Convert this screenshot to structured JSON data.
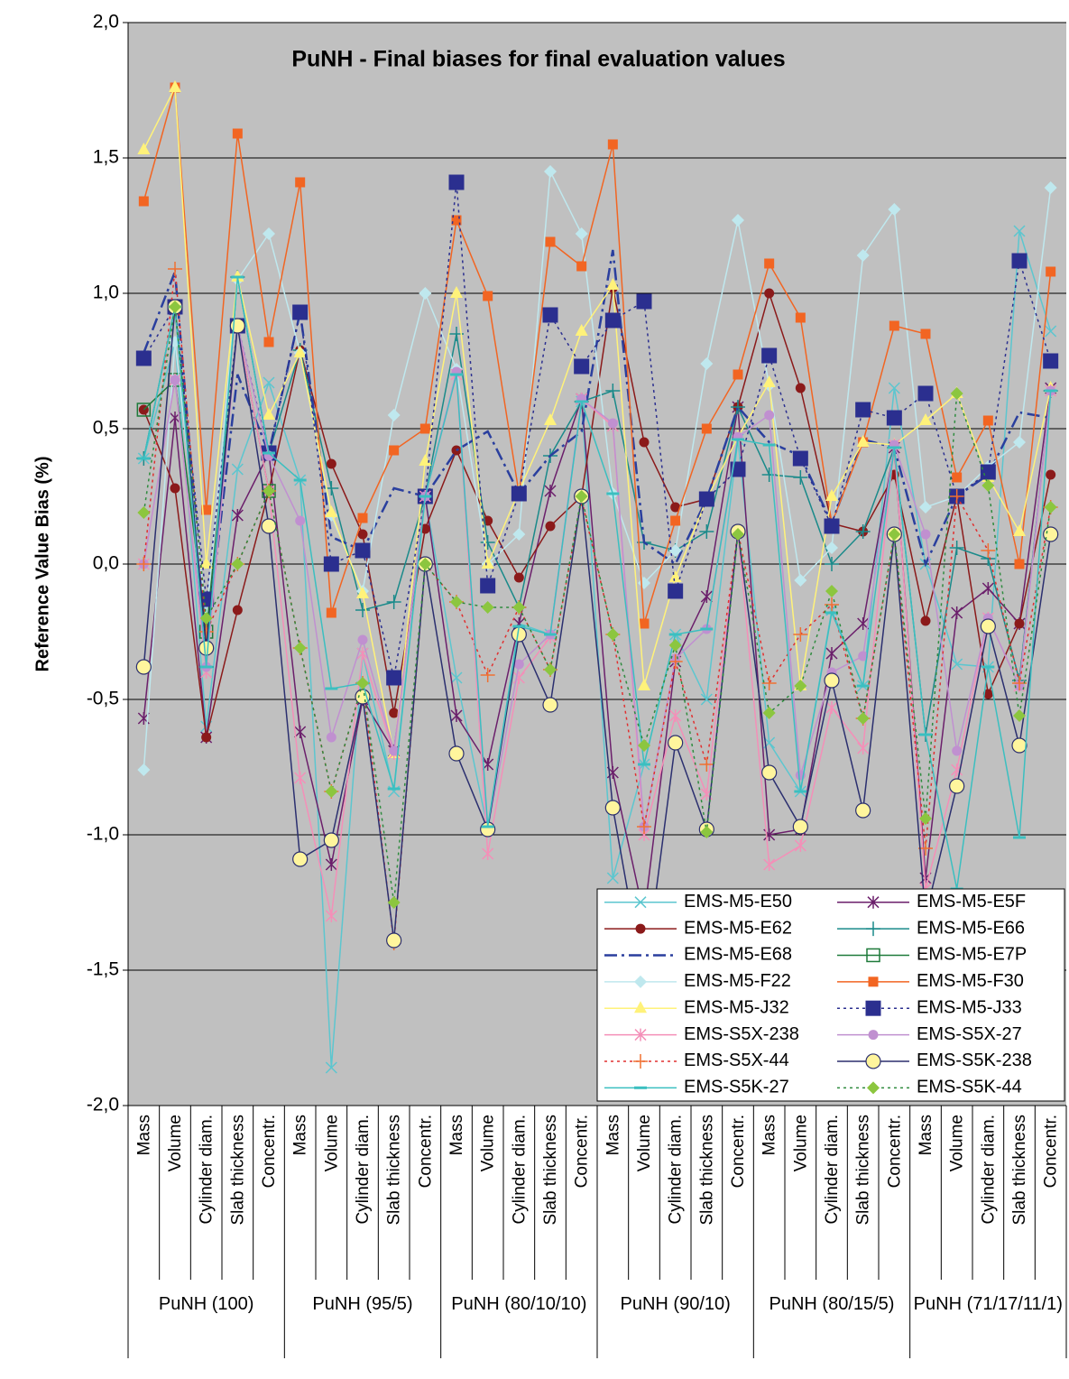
{
  "chart_data": {
    "type": "line",
    "title": "PuNH - Final biases for final evaluation values",
    "y_label": "Reference Value Bias (%)",
    "categories": [
      "Mass",
      "Volume",
      "Cylinder diam.",
      "Slab thickness",
      "Concentr.",
      "Mass",
      "Volume",
      "Cylinder diam.",
      "Slab thickness",
      "Concentr.",
      "Mass",
      "Volume",
      "Cylinder diam.",
      "Slab thickness",
      "Concentr.",
      "Mass",
      "Volume",
      "Cylinder diam.",
      "Slab thickness",
      "Concentr.",
      "Mass",
      "Volume",
      "Cylinder diam.",
      "Slab thickness",
      "Concentr.",
      "Mass",
      "Volume",
      "Cylinder diam.",
      "Slab thickness",
      "Concentr."
    ],
    "groups": [
      "PuNH (100)",
      "PuNH (95/5)",
      "PuNH (80/10/10)",
      "PuNH (90/10)",
      "PuNH (80/15/5)",
      "PuNH (71/17/11/1)"
    ],
    "ylim": [
      -2,
      2
    ],
    "yticks": [
      {
        "value": -2,
        "label": "-2,0"
      },
      {
        "value": -1.5,
        "label": "-1,5"
      },
      {
        "value": -1,
        "label": "-1,0"
      },
      {
        "value": -0.5,
        "label": "-0,5"
      },
      {
        "value": 0,
        "label": "0,0"
      },
      {
        "value": 0.5,
        "label": "0,5"
      },
      {
        "value": 1,
        "label": "1,0"
      },
      {
        "value": 1.5,
        "label": "1,5"
      },
      {
        "value": 2,
        "label": "2,0"
      }
    ],
    "grid": true,
    "legend": "lower right",
    "series": [
      {
        "name": "EMS-M5-E50",
        "color": "#5cc6cf",
        "marker": "x",
        "line_style": "solid",
        "values": [
          0.39,
          0.82,
          -0.6,
          0.35,
          0.67,
          0.31,
          -1.86,
          -0.33,
          -0.84,
          0.25,
          -0.42,
          -0.98,
          -0.22,
          -0.26,
          0.6,
          -1.16,
          -0.74,
          -0.26,
          -0.5,
          0.46,
          -0.66,
          -0.84,
          -0.17,
          -0.45,
          0.65,
          0,
          -0.37,
          -0.38,
          1.23,
          0.86
        ]
      },
      {
        "name": "EMS-M5-E5F",
        "color": "#6b1f6b",
        "marker": "asterisk",
        "line_style": "solid",
        "values": [
          -0.57,
          0.54,
          -0.64,
          0.18,
          0.41,
          -0.62,
          -1.11,
          -0.5,
          -0.69,
          0.25,
          -0.56,
          -0.74,
          -0.22,
          0.27,
          0.61,
          -0.77,
          -1.3,
          -0.36,
          -0.12,
          0.58,
          -1,
          -0.98,
          -0.33,
          -0.22,
          0.43,
          -1.16,
          -0.18,
          -0.09,
          -0.22,
          0.65
        ]
      },
      {
        "name": "EMS-M5-E62",
        "color": "#8b1a1a",
        "marker": "circle",
        "line_style": "solid",
        "values": [
          0.57,
          0.28,
          -0.64,
          -0.17,
          0.27,
          0.79,
          0.37,
          0.11,
          -0.55,
          0.13,
          0.42,
          0.16,
          -0.05,
          0.14,
          0.25,
          1.02,
          0.45,
          0.21,
          0.24,
          0.58,
          1,
          0.65,
          0.15,
          0.12,
          0.33,
          -0.21,
          0.25,
          -0.48,
          -0.22,
          0.33
        ]
      },
      {
        "name": "EMS-M5-E66",
        "color": "#1a8a8a",
        "marker": "plus",
        "line_style": "solid",
        "values": [
          0.39,
          0.95,
          -0.38,
          1.06,
          0.41,
          0.79,
          0.28,
          -0.17,
          -0.14,
          0.25,
          0.85,
          0.08,
          -0.16,
          0.4,
          0.6,
          0.64,
          0.08,
          0.05,
          0.12,
          0.58,
          0.33,
          0.32,
          0,
          0.12,
          0.43,
          -0.63,
          0.06,
          0.02,
          -0.43,
          0.64
        ]
      },
      {
        "name": "EMS-M5-E68",
        "color": "#2a3f9e",
        "marker": "none",
        "line_style": "dashdot",
        "values": [
          0.78,
          1.08,
          -0.3,
          0.7,
          0.41,
          0.93,
          0.1,
          0.05,
          0.28,
          0.25,
          0.42,
          0.49,
          0.26,
          0.4,
          0.49,
          1.16,
          0.08,
          0,
          0.24,
          0.58,
          0.45,
          0.4,
          0.15,
          0.46,
          0.43,
          0,
          0.25,
          0.33,
          0.56,
          0.54
        ]
      },
      {
        "name": "EMS-M5-E7P",
        "color": "#1e7a3a",
        "marker": "square_open",
        "line_style": "solid",
        "values": [
          0.57,
          0.68,
          -0.25,
          0.88,
          0.27,
          null,
          null,
          null,
          null,
          null,
          null,
          null,
          null,
          null,
          null,
          null,
          null,
          null,
          null,
          null,
          null,
          null,
          null,
          null,
          null,
          null,
          null,
          null,
          null,
          null
        ]
      },
      {
        "name": "EMS-M5-F22",
        "color": "#bfe8ee",
        "marker": "diamond",
        "line_style": "solid",
        "values": [
          -0.76,
          0.82,
          -0.2,
          1.05,
          1.22,
          0.78,
          0.18,
          -0.1,
          0.55,
          1,
          0.72,
          0,
          0.11,
          1.45,
          1.22,
          0.26,
          -0.07,
          0.05,
          0.74,
          1.27,
          0.66,
          -0.06,
          0.06,
          1.14,
          1.31,
          0.21,
          0.25,
          0.36,
          0.45,
          1.39
        ]
      },
      {
        "name": "EMS-M5-F30",
        "color": "#f26522",
        "marker": "square",
        "line_style": "solid",
        "values": [
          1.34,
          1.76,
          0.2,
          1.59,
          0.82,
          1.41,
          -0.18,
          0.17,
          0.42,
          0.5,
          1.27,
          0.99,
          0.26,
          1.19,
          1.1,
          1.55,
          -0.22,
          0.16,
          0.5,
          0.7,
          1.11,
          0.91,
          0.15,
          0.45,
          0.88,
          0.85,
          0.32,
          0.53,
          0,
          1.08
        ]
      },
      {
        "name": "EMS-M5-J32",
        "color": "#fff27a",
        "marker": "triangle",
        "line_style": "solid",
        "values": [
          1.53,
          1.76,
          0,
          1.06,
          0.55,
          0.78,
          0.19,
          -0.11,
          -0.7,
          0.38,
          1,
          0,
          0.27,
          0.53,
          0.86,
          1.03,
          -0.45,
          -0.05,
          0.24,
          0.47,
          0.67,
          -0.45,
          0.25,
          0.45,
          0.44,
          0.53,
          0.63,
          0.32,
          0.12,
          0.65
        ]
      },
      {
        "name": "EMS-M5-J33",
        "color": "#2b2f8f",
        "marker": "square_big",
        "line_style": "dotted",
        "values": [
          0.76,
          0.95,
          -0.13,
          0.88,
          0.41,
          0.93,
          0,
          0.05,
          -0.42,
          0.25,
          1.41,
          -0.08,
          0.26,
          0.92,
          0.73,
          0.9,
          0.97,
          -0.1,
          0.24,
          0.35,
          0.77,
          0.39,
          0.14,
          0.57,
          0.54,
          0.63,
          0.25,
          0.34,
          1.12,
          0.75
        ]
      },
      {
        "name": "EMS-S5X-238",
        "color": "#f48fb8",
        "marker": "asterisk",
        "line_style": "solid",
        "values": [
          0,
          0.68,
          -0.4,
          0.88,
          0.27,
          -0.79,
          -1.3,
          -0.33,
          -0.7,
          0.25,
          0.7,
          -1.07,
          -0.42,
          -0.27,
          0.61,
          0.51,
          -1,
          -0.56,
          -0.85,
          0.12,
          -1.11,
          -1.04,
          -0.53,
          -0.68,
          0.44,
          -1.2,
          -0.76,
          -0.2,
          -0.45,
          0.64
        ]
      },
      {
        "name": "EMS-S5X-27",
        "color": "#c090d0",
        "marker": "circle",
        "line_style": "solid",
        "values": [
          0,
          0.68,
          -0.38,
          0.88,
          0.4,
          0.16,
          -0.64,
          -0.28,
          -0.69,
          0.25,
          0.71,
          -0.98,
          -0.37,
          -0.26,
          0.61,
          0.52,
          -0.97,
          -0.35,
          -0.24,
          0.47,
          0.55,
          -0.78,
          -0.4,
          -0.34,
          0.44,
          0.11,
          -0.69,
          -0.2,
          -0.45,
          0.64
        ]
      },
      {
        "name": "EMS-S5X-44",
        "color": "#e03030",
        "marker_fill": "#f07030",
        "marker": "plus",
        "line_style": "dotted",
        "values": [
          0,
          1.09,
          -0.25,
          0,
          0.27,
          -0.31,
          -0.84,
          -0.44,
          -1.4,
          0,
          -0.14,
          -0.41,
          -0.16,
          -0.39,
          0.24,
          -0.26,
          -0.97,
          -0.36,
          -0.74,
          0.12,
          -0.44,
          -0.26,
          -0.15,
          -0.57,
          0.11,
          -1.05,
          0.25,
          0.05,
          -0.44,
          0.21
        ]
      },
      {
        "name": "EMS-S5K-238",
        "color": "#2b2f6f",
        "marker_fill": "#fff59d",
        "marker": "circle_big",
        "line_style": "solid",
        "values": [
          -0.38,
          0.95,
          -0.31,
          0.88,
          0.14,
          -1.09,
          -1.02,
          -0.49,
          -1.39,
          0,
          -0.7,
          -0.98,
          -0.26,
          -0.52,
          0.25,
          -0.9,
          -1.55,
          -0.66,
          -0.98,
          0.12,
          -0.77,
          -0.97,
          -0.43,
          -0.91,
          0.11,
          -1.3,
          -0.82,
          -0.23,
          -0.67,
          0.11
        ]
      },
      {
        "name": "EMS-S5K-27",
        "color": "#3bbfc0",
        "marker": "dash",
        "line_style": "solid",
        "values": [
          0.39,
          0.95,
          -0.38,
          1.06,
          0.41,
          0.31,
          -0.46,
          -0.44,
          -0.83,
          0.25,
          0.7,
          -0.97,
          -0.23,
          -0.26,
          0.6,
          0.26,
          -0.74,
          -0.26,
          -0.24,
          0.46,
          0.44,
          -0.84,
          -0.18,
          -0.45,
          0.43,
          -0.63,
          -1.2,
          -0.38,
          -1.01,
          0.64
        ]
      },
      {
        "name": "EMS-S5K-44",
        "color": "#2e8b3e",
        "marker_fill": "#8cc63f",
        "marker": "diamond",
        "line_style": "dotted",
        "values": [
          0.19,
          0.95,
          -0.2,
          0,
          0.27,
          -0.31,
          -0.84,
          -0.44,
          -1.25,
          0,
          -0.14,
          -0.16,
          -0.16,
          -0.39,
          0.25,
          -0.26,
          -0.67,
          -0.3,
          -0.99,
          0.11,
          -0.55,
          -0.45,
          -0.1,
          -0.57,
          0.11,
          -0.94,
          0.63,
          0.29,
          -0.56,
          0.21
        ]
      }
    ]
  }
}
